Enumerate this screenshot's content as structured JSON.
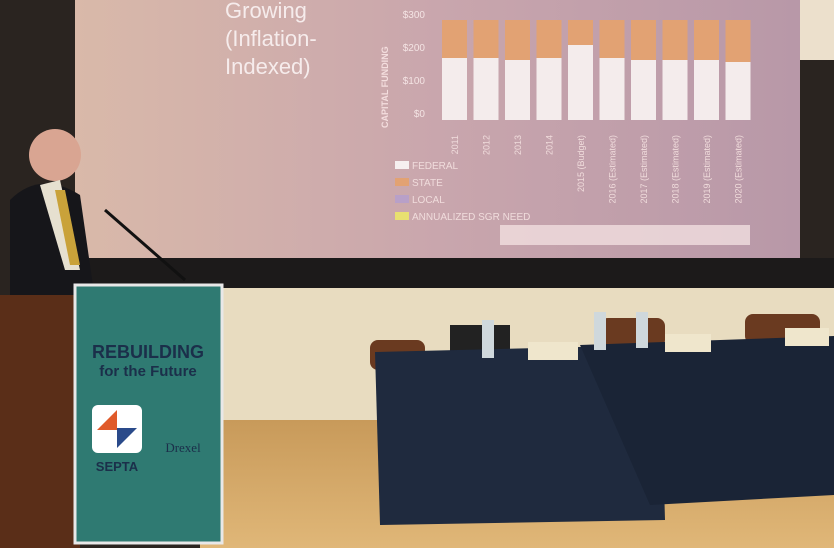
{
  "slide": {
    "title_lines": [
      "Growing",
      "(Inflation-",
      "Indexed)"
    ],
    "axis_label": "CAPITAL FUNDING",
    "yticks": [
      "$300",
      "$200",
      "$100",
      "$0"
    ],
    "years": [
      "2011",
      "2012",
      "2013",
      "2014",
      "2015 (Budget)",
      "2016 (Estimated)",
      "2017 (Estimated)",
      "2018 (Estimated)",
      "2019 (Estimated)",
      "2020 (Estimated)"
    ],
    "legend": [
      "FEDERAL",
      "STATE",
      "LOCAL",
      "ANNUALIZED SGR NEED"
    ]
  },
  "podium": {
    "headline": "REBUILDING",
    "subline": "for the Future",
    "logos": [
      "SEPTA",
      "Drexel"
    ]
  }
}
